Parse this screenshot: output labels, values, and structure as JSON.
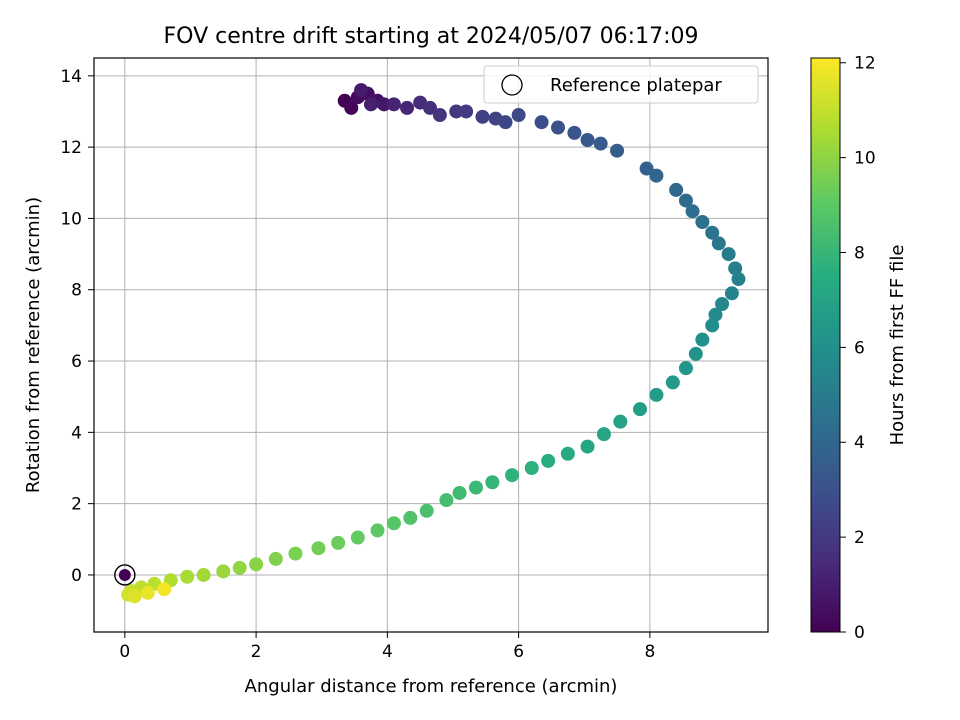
{
  "chart_data": {
    "type": "scatter",
    "title": "FOV centre drift starting at 2024/05/07 06:17:09",
    "xlabel": "Angular distance from reference (arcmin)",
    "ylabel": "Rotation from reference (arcmin)",
    "xlim": [
      -0.47,
      9.8
    ],
    "ylim": [
      -1.6,
      14.5
    ],
    "xticks": [
      0,
      2,
      4,
      6,
      8
    ],
    "yticks": [
      0,
      2,
      4,
      6,
      8,
      10,
      12,
      14
    ],
    "xtick_labels": [
      "0",
      "2",
      "4",
      "6",
      "8"
    ],
    "ytick_labels": [
      "0",
      "2",
      "4",
      "6",
      "8",
      "10",
      "12",
      "14"
    ],
    "grid": true,
    "legend": {
      "placement": "upper right",
      "entries": [
        "Reference platepar"
      ]
    },
    "reference_point": {
      "x": 0,
      "y": 0
    },
    "colorbar": {
      "label": "Hours from first FF file",
      "range": [
        0,
        12.1
      ],
      "ticks": [
        0,
        2,
        4,
        6,
        8,
        10,
        12
      ],
      "tick_labels": [
        "0",
        "2",
        "4",
        "6",
        "8",
        "10",
        "12"
      ],
      "colormap": "viridis"
    },
    "series": [
      {
        "x": [
          3.35,
          3.45,
          3.55,
          3.7,
          3.85,
          3.95,
          3.6,
          3.75,
          4.1,
          4.3,
          4.5,
          4.65,
          4.8,
          5.05,
          5.2,
          5.45,
          5.65,
          5.8,
          6.0,
          6.35,
          6.6,
          6.85,
          7.05,
          7.25,
          7.5,
          7.95,
          8.1,
          8.4,
          8.55,
          8.65,
          8.8,
          8.95,
          9.05,
          9.2,
          9.3,
          9.35,
          9.25,
          9.1,
          9.0,
          8.95,
          8.8,
          8.7,
          8.55,
          8.35,
          8.1,
          7.85,
          7.55,
          7.3,
          7.05,
          6.75,
          6.45,
          6.2,
          5.9,
          5.6,
          5.35,
          5.1,
          4.9,
          4.6,
          4.35,
          4.1,
          3.85,
          3.55,
          3.25,
          2.95,
          2.6,
          2.3,
          2.0,
          1.75,
          1.5,
          1.2,
          0.95,
          0.7,
          0.45,
          0.25,
          0.1,
          0.05,
          0.15,
          0.35,
          0.6
        ],
        "y": [
          13.3,
          13.1,
          13.4,
          13.5,
          13.3,
          13.2,
          13.6,
          13.2,
          13.2,
          13.1,
          13.25,
          13.1,
          12.9,
          13.0,
          13.0,
          12.85,
          12.8,
          12.7,
          12.9,
          12.7,
          12.55,
          12.4,
          12.2,
          12.1,
          11.9,
          11.4,
          11.2,
          10.8,
          10.5,
          10.2,
          9.9,
          9.6,
          9.3,
          9.0,
          8.6,
          8.3,
          7.9,
          7.6,
          7.3,
          7.0,
          6.6,
          6.2,
          5.8,
          5.4,
          5.05,
          4.65,
          4.3,
          3.95,
          3.6,
          3.4,
          3.2,
          3.0,
          2.8,
          2.6,
          2.45,
          2.3,
          2.1,
          1.8,
          1.6,
          1.45,
          1.25,
          1.05,
          0.9,
          0.75,
          0.6,
          0.45,
          0.3,
          0.2,
          0.1,
          0.0,
          -0.05,
          -0.15,
          -0.25,
          -0.35,
          -0.45,
          -0.55,
          -0.6,
          -0.5,
          -0.4
        ],
        "hours": [
          0.0,
          0.15,
          0.3,
          0.45,
          0.6,
          0.75,
          0.9,
          1.05,
          1.2,
          1.35,
          1.5,
          1.65,
          1.8,
          1.95,
          2.1,
          2.25,
          2.4,
          2.55,
          2.7,
          2.85,
          3.0,
          3.15,
          3.3,
          3.45,
          3.6,
          3.75,
          3.9,
          4.05,
          4.2,
          4.35,
          4.5,
          4.65,
          4.8,
          4.95,
          5.1,
          5.25,
          5.4,
          5.55,
          5.7,
          5.85,
          6.0,
          6.15,
          6.3,
          6.45,
          6.6,
          6.75,
          6.9,
          7.05,
          7.2,
          7.35,
          7.5,
          7.65,
          7.8,
          7.95,
          8.1,
          8.25,
          8.4,
          8.55,
          8.7,
          8.85,
          9.0,
          9.15,
          9.3,
          9.45,
          9.6,
          9.75,
          9.9,
          10.05,
          10.2,
          10.35,
          10.5,
          10.65,
          10.8,
          10.95,
          11.1,
          11.3,
          11.5,
          11.7,
          11.9
        ]
      }
    ]
  }
}
